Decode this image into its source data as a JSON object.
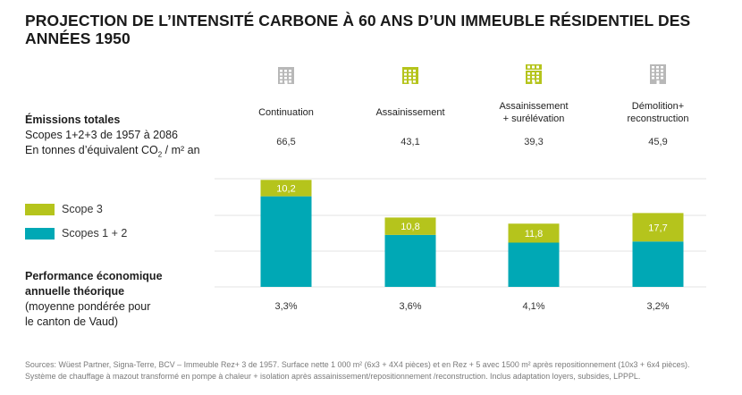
{
  "title": "PROJECTION DE L’INTENSITÉ CARBONE À 60 ANS D’UN IMMEUBLE RÉSIDENTIEL DES ANNÉES 1950",
  "emissions": {
    "heading": "Émissions totales",
    "line2": "Scopes 1+2+3 de 1957 à 2086",
    "line3": "En tonnes d’équivalent CO",
    "line3_sub": "2",
    "line3_tail": " / m² an"
  },
  "legend": [
    {
      "label": "Scope 3",
      "color": "#b5c41c"
    },
    {
      "label": "Scopes 1 + 2",
      "color": "#00a8b5"
    }
  ],
  "performance": {
    "line1": "Performance économique",
    "line2": "annuelle théorique",
    "line3": "(moyenne pondérée pour",
    "line4": "le canton de Vaud)"
  },
  "icons": [
    {
      "name": "building-icon",
      "color": "#b8b8b8"
    },
    {
      "name": "building-icon",
      "color": "#b5c41c"
    },
    {
      "name": "building-plus-icon",
      "color": "#b5c41c"
    },
    {
      "name": "building-tall-icon",
      "color": "#b8b8b8"
    }
  ],
  "chart_data": {
    "type": "bar",
    "stacked": true,
    "categories": [
      "Continuation",
      "Assainissement",
      "Assainissement + surélévation",
      "Démolition+ reconstruction"
    ],
    "category_lines": [
      [
        "Continuation"
      ],
      [
        "Assainissement"
      ],
      [
        "Assainissement",
        "+ surélévation"
      ],
      [
        "Démolition+",
        "reconstruction"
      ]
    ],
    "totals": [
      "66,5",
      "43,1",
      "39,3",
      "45,9"
    ],
    "series": [
      {
        "name": "Scopes 1 + 2",
        "color": "#00a8b5",
        "values": [
          56.3,
          32.3,
          27.5,
          28.2
        ]
      },
      {
        "name": "Scope 3",
        "color": "#b5c41c",
        "values": [
          10.2,
          10.8,
          11.8,
          17.7
        ],
        "labels": [
          "10,2",
          "10,8",
          "11,8",
          "17,7"
        ]
      }
    ],
    "performance": [
      "3,3%",
      "3,6%",
      "4,1%",
      "3,2%"
    ],
    "ylim": [
      0,
      70
    ],
    "grid": true
  },
  "sources": {
    "line1": "Sources: Wüest Partner, Signa-Terre, BCV – Immeuble Rez+ 3 de 1957. Surface nette 1 000 m² (6x3 + 4X4 pièces) et en Rez + 5 avec 1500 m² après repositionnement (10x3 + 6x4 pièces).",
    "line2": "Système de chauffage à mazout transformé en pompe à chaleur + isolation après assainissement/repositionnement /reconstruction. Inclus adaptation loyers, subsides, LPPPL."
  }
}
